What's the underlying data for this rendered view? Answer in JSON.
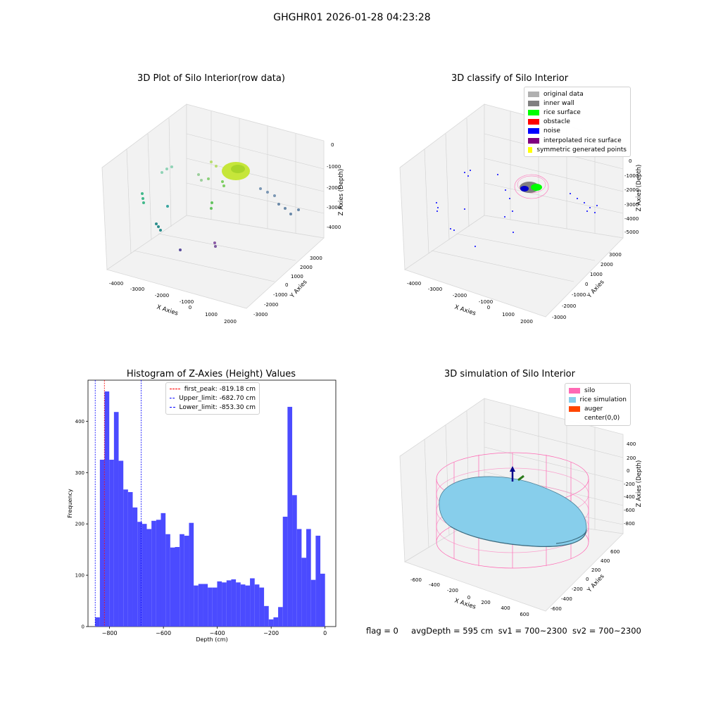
{
  "figure": {
    "suptitle": "GHGHR01 2026-01-28 04:23:28",
    "footer": {
      "flag": "flag = 0",
      "avg_depth": "avgDepth = 595 cm",
      "sv1": "sv1 = 700~2300",
      "sv2": "sv2 = 700~2300"
    }
  },
  "panels": {
    "raw": {
      "title": "3D Plot of Silo Interior(row data)",
      "xlabel": "X Axies",
      "ylabel": "Y Axies",
      "zlabel": "Z Axies (Depth)",
      "xticks": [
        "-4000",
        "-3000",
        "-2000",
        "-1000",
        "0",
        "1000",
        "2000"
      ],
      "yticks": [
        "3000",
        "2000",
        "1000",
        "0",
        "-1000",
        "-2000",
        "-3000"
      ],
      "zticks": [
        "0",
        "-1000",
        "-2000",
        "-3000",
        "-4000"
      ]
    },
    "classify": {
      "title": "3D classify of Silo Interior",
      "xlabel": "X Axies",
      "ylabel": "Y Axies",
      "zlabel": "Z Axies (Depth)",
      "xticks": [
        "-4000",
        "-3000",
        "-2000",
        "-1000",
        "0",
        "1000",
        "2000"
      ],
      "yticks": [
        "3000",
        "2000",
        "1000",
        "0",
        "-1000",
        "-2000",
        "-3000"
      ],
      "zticks": [
        "0",
        "-1000",
        "-2000",
        "-3000",
        "-4000",
        "-5000"
      ],
      "legend": [
        {
          "label": "original data",
          "color": "#b0b0b0"
        },
        {
          "label": "inner wall",
          "color": "#808080"
        },
        {
          "label": "rice surface",
          "color": "#00ff00"
        },
        {
          "label": "obstacle",
          "color": "#ff0000"
        },
        {
          "label": "noise",
          "color": "#0000ff"
        },
        {
          "label": "interpolated rice surface",
          "color": "#800080"
        },
        {
          "label": "symmetric generated points",
          "color": "#ffff00"
        }
      ]
    },
    "simulation": {
      "title": "3D simulation of Silo Interior",
      "xlabel": "X Axies",
      "ylabel": "Y Axies",
      "zlabel": "Z Axies (Depth)",
      "xticks": [
        "-600",
        "-400",
        "-200",
        "0",
        "200",
        "400",
        "600"
      ],
      "yticks": [
        "600",
        "400",
        "200",
        "0",
        "-200",
        "-400",
        "-600"
      ],
      "zticks": [
        "400",
        "200",
        "0",
        "-200",
        "-400",
        "-600",
        "-800"
      ],
      "legend": [
        {
          "label": "silo",
          "color": "#ff69b4"
        },
        {
          "label": "rice simulation",
          "color": "#87ceeb"
        },
        {
          "label": "auger",
          "color": "#ff4500"
        },
        {
          "label": "center(0,0)",
          "color": "#ffffff"
        }
      ]
    }
  },
  "chart_data": [
    {
      "type": "scatter",
      "title": "3D Plot of Silo Interior(row data)",
      "xlabel": "X Axies",
      "ylabel": "Y Axies",
      "zlabel": "Z Axies (Depth)",
      "xlim": [
        -4500,
        2500
      ],
      "ylim": [
        -3500,
        3500
      ],
      "zlim": [
        -4500,
        0
      ]
    },
    {
      "type": "scatter",
      "title": "3D classify of Silo Interior",
      "xlabel": "X Axies",
      "ylabel": "Y Axies",
      "zlabel": "Z Axies (Depth)",
      "xlim": [
        -4500,
        2500
      ],
      "ylim": [
        -3500,
        3500
      ],
      "zlim": [
        -5500,
        0
      ],
      "series": [
        {
          "name": "original data",
          "color": "#b0b0b0"
        },
        {
          "name": "inner wall",
          "color": "#808080"
        },
        {
          "name": "rice surface",
          "color": "#00ff00"
        },
        {
          "name": "obstacle",
          "color": "#ff0000"
        },
        {
          "name": "noise",
          "color": "#0000ff"
        },
        {
          "name": "interpolated rice surface",
          "color": "#800080"
        },
        {
          "name": "symmetric generated points",
          "color": "#ffff00"
        }
      ]
    },
    {
      "type": "bar",
      "title": "Histogram of Z-Axies (Height) Values",
      "xlabel": "Depth (cm)",
      "ylabel": "Frequency",
      "xlim": [
        -880,
        40
      ],
      "ylim": [
        0,
        480
      ],
      "xticks": [
        -800,
        -600,
        -400,
        -200,
        0
      ],
      "yticks": [
        0,
        100,
        200,
        300,
        400
      ],
      "bar_color": "#4b4bff",
      "bin_range": [
        -853.3,
        0
      ],
      "counts": [
        18,
        325,
        458,
        325,
        418,
        323,
        267,
        262,
        232,
        204,
        200,
        190,
        206,
        208,
        221,
        180,
        154,
        155,
        180,
        177,
        202,
        80,
        83,
        83,
        76,
        76,
        88,
        86,
        90,
        92,
        86,
        82,
        80,
        94,
        82,
        76,
        40,
        14,
        18,
        38,
        214,
        428,
        256,
        190,
        134,
        190,
        91,
        177,
        103
      ],
      "vlines": [
        {
          "label": "first_peak: -819.18 cm",
          "x": -819.18,
          "color": "#ff0000"
        },
        {
          "label": "Upper_limit: -682.70 cm",
          "x": -682.7,
          "color": "#0000ff"
        },
        {
          "label": "Lower_limit: -853.30 cm",
          "x": -853.3,
          "color": "#0000ff"
        }
      ]
    },
    {
      "type": "area",
      "title": "3D simulation of Silo Interior",
      "xlabel": "X Axies",
      "ylabel": "Y Axies",
      "zlabel": "Z Axies (Depth)",
      "xlim": [
        -700,
        700
      ],
      "ylim": [
        -700,
        700
      ],
      "zlim": [
        -900,
        450
      ],
      "series": [
        {
          "name": "silo",
          "color": "#ff69b4"
        },
        {
          "name": "rice simulation",
          "color": "#87ceeb"
        },
        {
          "name": "auger",
          "color": "#ff4500"
        },
        {
          "name": "center(0,0)",
          "color": "#ffffff"
        }
      ]
    }
  ]
}
